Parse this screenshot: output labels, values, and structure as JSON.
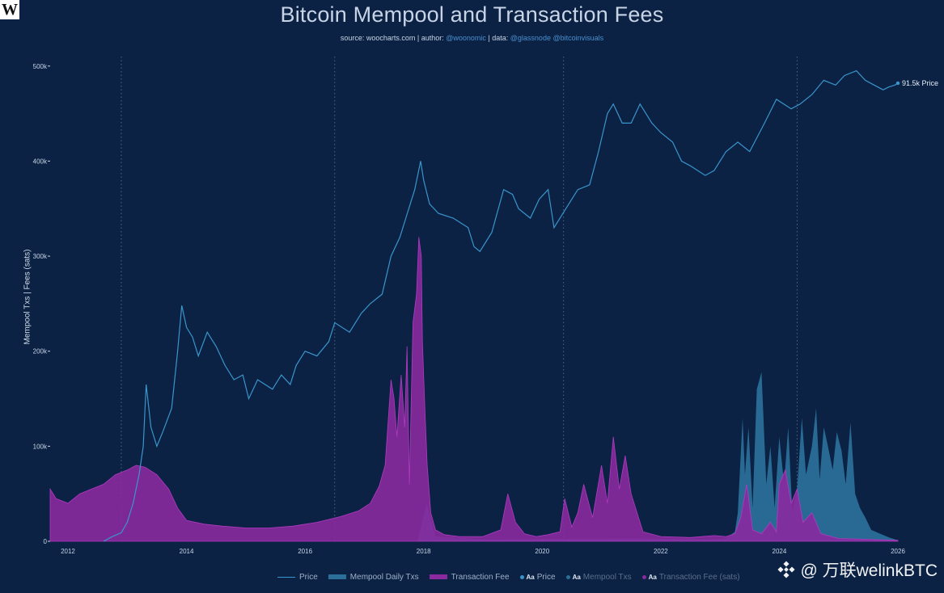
{
  "header": {
    "logo": "W",
    "title": "Bitcoin Mempool and Transaction Fees",
    "subtitle_prefix": "source: woocharts.com | author: ",
    "subtitle_author": "@woonomic",
    "subtitle_mid": " | data: ",
    "subtitle_data": "@glassnode @bitcoinvisuals"
  },
  "colors": {
    "background": "#0b2244",
    "price": "#3a95cc",
    "mempool": "#2b6f99",
    "fee": "#8a2a9e",
    "fee_line": "#b03ac0",
    "grid_dotted": "#4d6688"
  },
  "legend": {
    "price": "Price",
    "mempool": "Mempool Daily Txs",
    "fee": "Transaction Fee",
    "price_label": "Price",
    "mempool_label": "Mempool Txs",
    "fee_label": "Transaction Fee (sats)",
    "aa": "Aa"
  },
  "watermark": {
    "text": "@ 万联welinkBTC",
    "icon": "binance-diamond-icon"
  },
  "chart_data": {
    "type": "area",
    "title": "Bitcoin Mempool and Transaction Fees",
    "ylabel": "Mempool Txs  |  Fees (sats)",
    "xlim": [
      2011.7,
      2026.0
    ],
    "ylim": [
      0,
      510000
    ],
    "y_ticks": [
      0,
      100000,
      200000,
      300000,
      400000,
      500000
    ],
    "y_tick_labels": [
      "0",
      "100k",
      "200k",
      "300k",
      "400k",
      "500k"
    ],
    "x_ticks": [
      2012,
      2014,
      2016,
      2018,
      2020,
      2022,
      2024,
      2026
    ],
    "x_tick_labels": [
      "2012",
      "2014",
      "2016",
      "2018",
      "2020",
      "2022",
      "2024",
      "2026"
    ],
    "halving_lines_x": [
      2012.9,
      2016.5,
      2020.36,
      2024.3
    ],
    "price_end_label": "91.5k Price",
    "legend_position": "bottom",
    "grid": false,
    "series": [
      {
        "name": "Price",
        "kind": "line (log-scaled overlay)",
        "x": [
          2012.6,
          2012.75,
          2012.9,
          2013.0,
          2013.1,
          2013.2,
          2013.27,
          2013.32,
          2013.4,
          2013.5,
          2013.6,
          2013.75,
          2013.85,
          2013.92,
          2014.0,
          2014.1,
          2014.2,
          2014.35,
          2014.5,
          2014.65,
          2014.8,
          2014.95,
          2015.05,
          2015.2,
          2015.45,
          2015.6,
          2015.75,
          2015.85,
          2016.0,
          2016.2,
          2016.4,
          2016.5,
          2016.75,
          2016.95,
          2017.1,
          2017.3,
          2017.45,
          2017.6,
          2017.7,
          2017.85,
          2017.95,
          2018.0,
          2018.1,
          2018.25,
          2018.5,
          2018.75,
          2018.85,
          2018.95,
          2019.15,
          2019.35,
          2019.5,
          2019.6,
          2019.8,
          2019.95,
          2020.1,
          2020.2,
          2020.4,
          2020.6,
          2020.8,
          2020.95,
          2021.1,
          2021.2,
          2021.35,
          2021.5,
          2021.65,
          2021.85,
          2022.0,
          2022.2,
          2022.35,
          2022.5,
          2022.75,
          2022.9,
          2023.1,
          2023.3,
          2023.5,
          2023.75,
          2023.95,
          2024.2,
          2024.35,
          2024.55,
          2024.75,
          2024.95,
          2025.1,
          2025.3,
          2025.45,
          2025.6,
          2025.75,
          2025.85,
          2025.95,
          2026.0
        ],
        "values": [
          0,
          5000,
          9000,
          20000,
          40000,
          70000,
          100000,
          165000,
          120000,
          100000,
          115000,
          140000,
          200000,
          248000,
          225000,
          215000,
          195000,
          220000,
          205000,
          185000,
          170000,
          175000,
          150000,
          170000,
          160000,
          175000,
          165000,
          185000,
          200000,
          195000,
          210000,
          230000,
          220000,
          240000,
          250000,
          260000,
          300000,
          320000,
          340000,
          370000,
          400000,
          380000,
          355000,
          345000,
          340000,
          330000,
          310000,
          305000,
          325000,
          370000,
          365000,
          350000,
          340000,
          360000,
          370000,
          330000,
          350000,
          370000,
          375000,
          410000,
          450000,
          460000,
          440000,
          440000,
          460000,
          440000,
          430000,
          420000,
          400000,
          395000,
          385000,
          390000,
          410000,
          420000,
          410000,
          440000,
          465000,
          455000,
          460000,
          470000,
          485000,
          480000,
          490000,
          495000,
          485000,
          480000,
          475000,
          478000,
          480000,
          482000
        ]
      },
      {
        "name": "Mempool Daily Txs",
        "kind": "area",
        "x": [
          2011.7,
          2017.9,
          2018.05,
          2018.2,
          2019.0,
          2021.5,
          2022.8,
          2023.1,
          2023.25,
          2023.3,
          2023.38,
          2023.42,
          2023.48,
          2023.55,
          2023.62,
          2023.7,
          2023.78,
          2023.85,
          2023.92,
          2024.0,
          2024.08,
          2024.15,
          2024.22,
          2024.3,
          2024.38,
          2024.45,
          2024.55,
          2024.62,
          2024.68,
          2024.75,
          2024.82,
          2024.9,
          2024.97,
          2025.05,
          2025.12,
          2025.2,
          2025.28,
          2025.36,
          2025.45,
          2025.55,
          2025.7,
          2025.85,
          2026.0
        ],
        "values": [
          0,
          0,
          40000,
          5000,
          2000,
          3000,
          2000,
          3000,
          10000,
          30000,
          130000,
          70000,
          120000,
          35000,
          160000,
          178000,
          60000,
          100000,
          35000,
          110000,
          60000,
          120000,
          30000,
          55000,
          130000,
          70000,
          100000,
          140000,
          65000,
          120000,
          100000,
          75000,
          115000,
          95000,
          60000,
          125000,
          50000,
          35000,
          25000,
          12000,
          8000,
          4000,
          1000
        ]
      },
      {
        "name": "Transaction Fee",
        "kind": "area",
        "x": [
          2011.7,
          2011.8,
          2012.0,
          2012.2,
          2012.4,
          2012.6,
          2012.8,
          2013.0,
          2013.15,
          2013.3,
          2013.5,
          2013.7,
          2013.85,
          2014.0,
          2014.3,
          2014.6,
          2015.0,
          2015.4,
          2015.8,
          2016.2,
          2016.6,
          2016.9,
          2017.1,
          2017.25,
          2017.35,
          2017.45,
          2017.5,
          2017.55,
          2017.62,
          2017.68,
          2017.72,
          2017.76,
          2017.82,
          2017.88,
          2017.92,
          2017.96,
          2017.98,
          2018.02,
          2018.06,
          2018.12,
          2018.2,
          2018.35,
          2018.6,
          2019.0,
          2019.3,
          2019.42,
          2019.55,
          2019.7,
          2019.9,
          2020.1,
          2020.3,
          2020.38,
          2020.5,
          2020.6,
          2020.7,
          2020.85,
          2021.0,
          2021.1,
          2021.2,
          2021.3,
          2021.4,
          2021.5,
          2021.7,
          2022.0,
          2022.5,
          2022.9,
          2023.1,
          2023.25,
          2023.35,
          2023.45,
          2023.55,
          2023.7,
          2023.85,
          2023.95,
          2024.0,
          2024.1,
          2024.2,
          2024.3,
          2024.4,
          2024.55,
          2024.7,
          2025.0,
          2025.5,
          2026.0
        ],
        "values": [
          55000,
          45000,
          40000,
          50000,
          55000,
          60000,
          70000,
          75000,
          80000,
          78000,
          70000,
          55000,
          35000,
          22000,
          18000,
          16000,
          14000,
          14000,
          16000,
          20000,
          26000,
          32000,
          40000,
          58000,
          80000,
          170000,
          150000,
          110000,
          175000,
          120000,
          205000,
          60000,
          230000,
          260000,
          320000,
          300000,
          210000,
          140000,
          80000,
          30000,
          12000,
          7000,
          5000,
          5000,
          12000,
          50000,
          20000,
          8000,
          5000,
          7000,
          10000,
          45000,
          15000,
          30000,
          60000,
          25000,
          80000,
          40000,
          110000,
          55000,
          90000,
          50000,
          10000,
          5000,
          4000,
          6000,
          5000,
          8000,
          25000,
          60000,
          12000,
          8000,
          20000,
          10000,
          60000,
          75000,
          40000,
          55000,
          20000,
          30000,
          8000,
          3000,
          2000,
          1000
        ]
      }
    ]
  }
}
